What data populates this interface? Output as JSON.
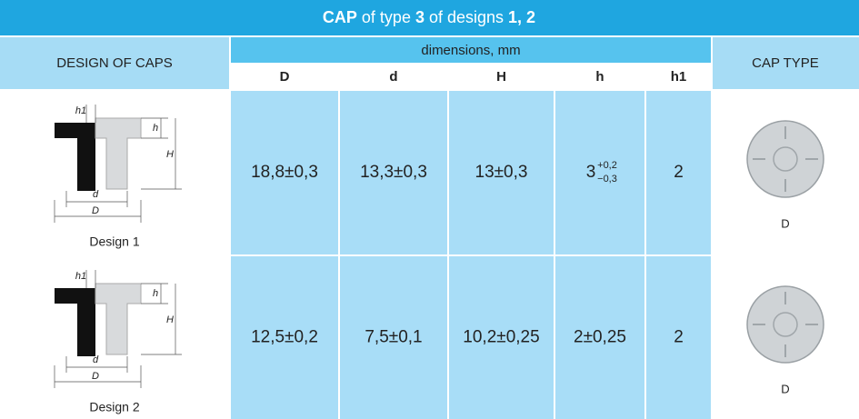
{
  "title": [
    {
      "text": "CAP",
      "bold": true
    },
    {
      "text": " of type ",
      "bold": false
    },
    {
      "text": "3",
      "bold": true
    },
    {
      "text": " of designs ",
      "bold": false
    },
    {
      "text": "1, 2",
      "bold": true
    }
  ],
  "header": {
    "design": "DESIGN OF CAPS",
    "dimensions": "dimensions, mm",
    "columns": [
      "D",
      "d",
      "H",
      "h",
      "h1"
    ],
    "cap_type": "CAP TYPE"
  },
  "rows": [
    {
      "design": "Design 1",
      "drawing_labels": [
        "h1",
        "h",
        "H",
        "d",
        "D"
      ],
      "values": [
        "18,8±0,3",
        "13,3±0,3",
        "13±0,3",
        {
          "base": "3",
          "upper": "+0,2",
          "lower": "−0,3"
        },
        "2"
      ],
      "cap_type": "D"
    },
    {
      "design": "Design 2",
      "drawing_labels": [
        "h1",
        "h",
        "H",
        "d",
        "D"
      ],
      "values": [
        "12,5±0,2",
        "7,5±0,1",
        "10,2±0,25",
        "2±0,25",
        "2"
      ],
      "cap_type": "D"
    }
  ]
}
